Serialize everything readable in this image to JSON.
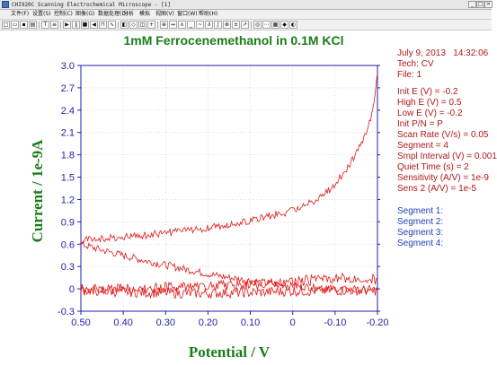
{
  "window": {
    "title": "CHI920C Scanning Electrochemical Microscope - [1]",
    "controls": [
      "_",
      "□",
      "×"
    ]
  },
  "menu": [
    "文件(F)",
    "设置(S)",
    "控制(C)",
    "图像(G)",
    "数据处理(D)",
    "分析",
    "模拟",
    "视图(V)",
    "窗口(W)",
    "帮助(H)"
  ],
  "toolbar": {
    "buttons": [
      "new-icon",
      "open-icon",
      "save-icon",
      "print-icon",
      "technique-icon",
      "parameters-icon",
      "run-icon",
      "pause-icon",
      "stop-icon",
      "reverse-icon",
      "ir-comp-icon",
      "filter-icon",
      "cell-icon",
      "graph-icon",
      "overlay-icon",
      "add-icon",
      "zoom-icon",
      "manual-icon",
      "peak-icon",
      "baseline-icon",
      "smooth-icon",
      "derivative-icon",
      "integrate-icon",
      "convolution-icon",
      "math-icon",
      "fit-icon",
      "probe-icon",
      "scan-icon",
      "image-icon",
      "3d-icon",
      "color-icon"
    ]
  },
  "plot": {
    "title": "1mM Ferrocenemethanol in 0.1M KCl",
    "ylabel": "Current / 1e-9A",
    "xlabel": "Potential / V"
  },
  "info_panel": {
    "header": {
      "date": "July 9, 2013",
      "time": "14:32:06",
      "tech": "Tech: CV",
      "file": "File: 1"
    },
    "params": [
      "Init E (V) = -0.2",
      "High E (V) = 0.5",
      "Low E (V) = -0.2",
      "Init P/N = P",
      "Scan Rate (V/s) = 0.05",
      "Segment = 4",
      "Smpl Interval (V) = 0.001",
      "Quiet Time (s) = 2",
      "Sensitivity (A/V) = 1e-9",
      "Sens 2 (A/V) = 1e-5"
    ],
    "segments": [
      "Segment 1:",
      "Segment 2:",
      "Segment 3:",
      "Segment 4:"
    ]
  },
  "colors": {
    "trace": "#e01818",
    "axis": "#1f1fa8",
    "title": "#1a7d1a",
    "info": "#b01818",
    "segments": "#1f3fb5"
  },
  "chart_data": {
    "type": "line",
    "title": "1mM Ferrocenemethanol in 0.1M KCl",
    "xlabel": "Potential / V",
    "ylabel": "Current / 1e-9A",
    "xlim": [
      0.5,
      -0.2
    ],
    "ylim": [
      -0.3,
      3.0
    ],
    "x_reversed": true,
    "grid": true,
    "x_ticks": [
      "0.50",
      "0.40",
      "0.30",
      "0.20",
      "0.10",
      "0",
      "-0.10",
      "-0.20"
    ],
    "x_tick_values": [
      0.5,
      0.4,
      0.3,
      0.2,
      0.1,
      0,
      -0.1,
      -0.2
    ],
    "y_ticks": [
      "3.0",
      "2.7",
      "2.4",
      "2.1",
      "1.8",
      "1.5",
      "1.2",
      "0.9",
      "0.6",
      "0.3",
      "0",
      "-0.3"
    ],
    "y_tick_values": [
      3.0,
      2.7,
      2.4,
      2.1,
      1.8,
      1.5,
      1.2,
      0.9,
      0.6,
      0.3,
      0,
      -0.3
    ],
    "series": [
      {
        "x": [
          -0.2,
          -0.19,
          -0.18,
          -0.17,
          -0.16,
          -0.15,
          -0.14,
          -0.13,
          -0.12,
          -0.11,
          -0.1,
          -0.08,
          -0.06,
          -0.04,
          -0.02,
          0,
          0.02,
          0.04,
          0.06,
          0.08,
          0.1,
          0.12,
          0.15,
          0.2,
          0.25,
          0.3,
          0.35,
          0.4,
          0.45,
          0.48,
          0.5
        ],
        "y": [
          2.9,
          2.45,
          2.2,
          2.05,
          1.95,
          1.85,
          1.72,
          1.62,
          1.55,
          1.48,
          1.4,
          1.3,
          1.22,
          1.15,
          1.1,
          1.05,
          1.02,
          1.0,
          0.97,
          0.95,
          0.92,
          0.9,
          0.87,
          0.82,
          0.78,
          0.75,
          0.72,
          0.7,
          0.68,
          0.66,
          0.65
        ]
      },
      {
        "x": [
          0.5,
          0.45,
          0.4,
          0.35,
          0.3,
          0.25,
          0.2,
          0.15,
          0.1,
          0.05,
          0,
          -0.05,
          -0.1,
          -0.15,
          -0.2
        ],
        "y": [
          0.6,
          0.52,
          0.45,
          0.38,
          0.32,
          0.26,
          0.2,
          0.15,
          0.11,
          0.07,
          0.04,
          0.02,
          0.0,
          -0.02,
          -0.03
        ]
      },
      {
        "x": [
          -0.2,
          -0.15,
          -0.1,
          -0.05,
          0,
          0.05,
          0.1,
          0.15,
          0.2,
          0.25,
          0.3,
          0.35,
          0.4,
          0.45,
          0.5
        ],
        "y": [
          0.12,
          0.15,
          0.14,
          0.12,
          0.1,
          0.08,
          0.06,
          0.05,
          0.04,
          0.03,
          0.02,
          0.01,
          0.0,
          -0.01,
          0.0
        ]
      },
      {
        "x": [
          0.5,
          0.45,
          0.4,
          0.35,
          0.3,
          0.25,
          0.2,
          0.15,
          0.1,
          0.05,
          0,
          -0.05,
          -0.1,
          -0.15,
          -0.2
        ],
        "y": [
          -0.02,
          -0.03,
          -0.04,
          -0.05,
          -0.05,
          -0.06,
          -0.06,
          -0.05,
          -0.05,
          -0.04,
          -0.03,
          -0.03,
          -0.02,
          -0.02,
          -0.02
        ]
      }
    ]
  }
}
